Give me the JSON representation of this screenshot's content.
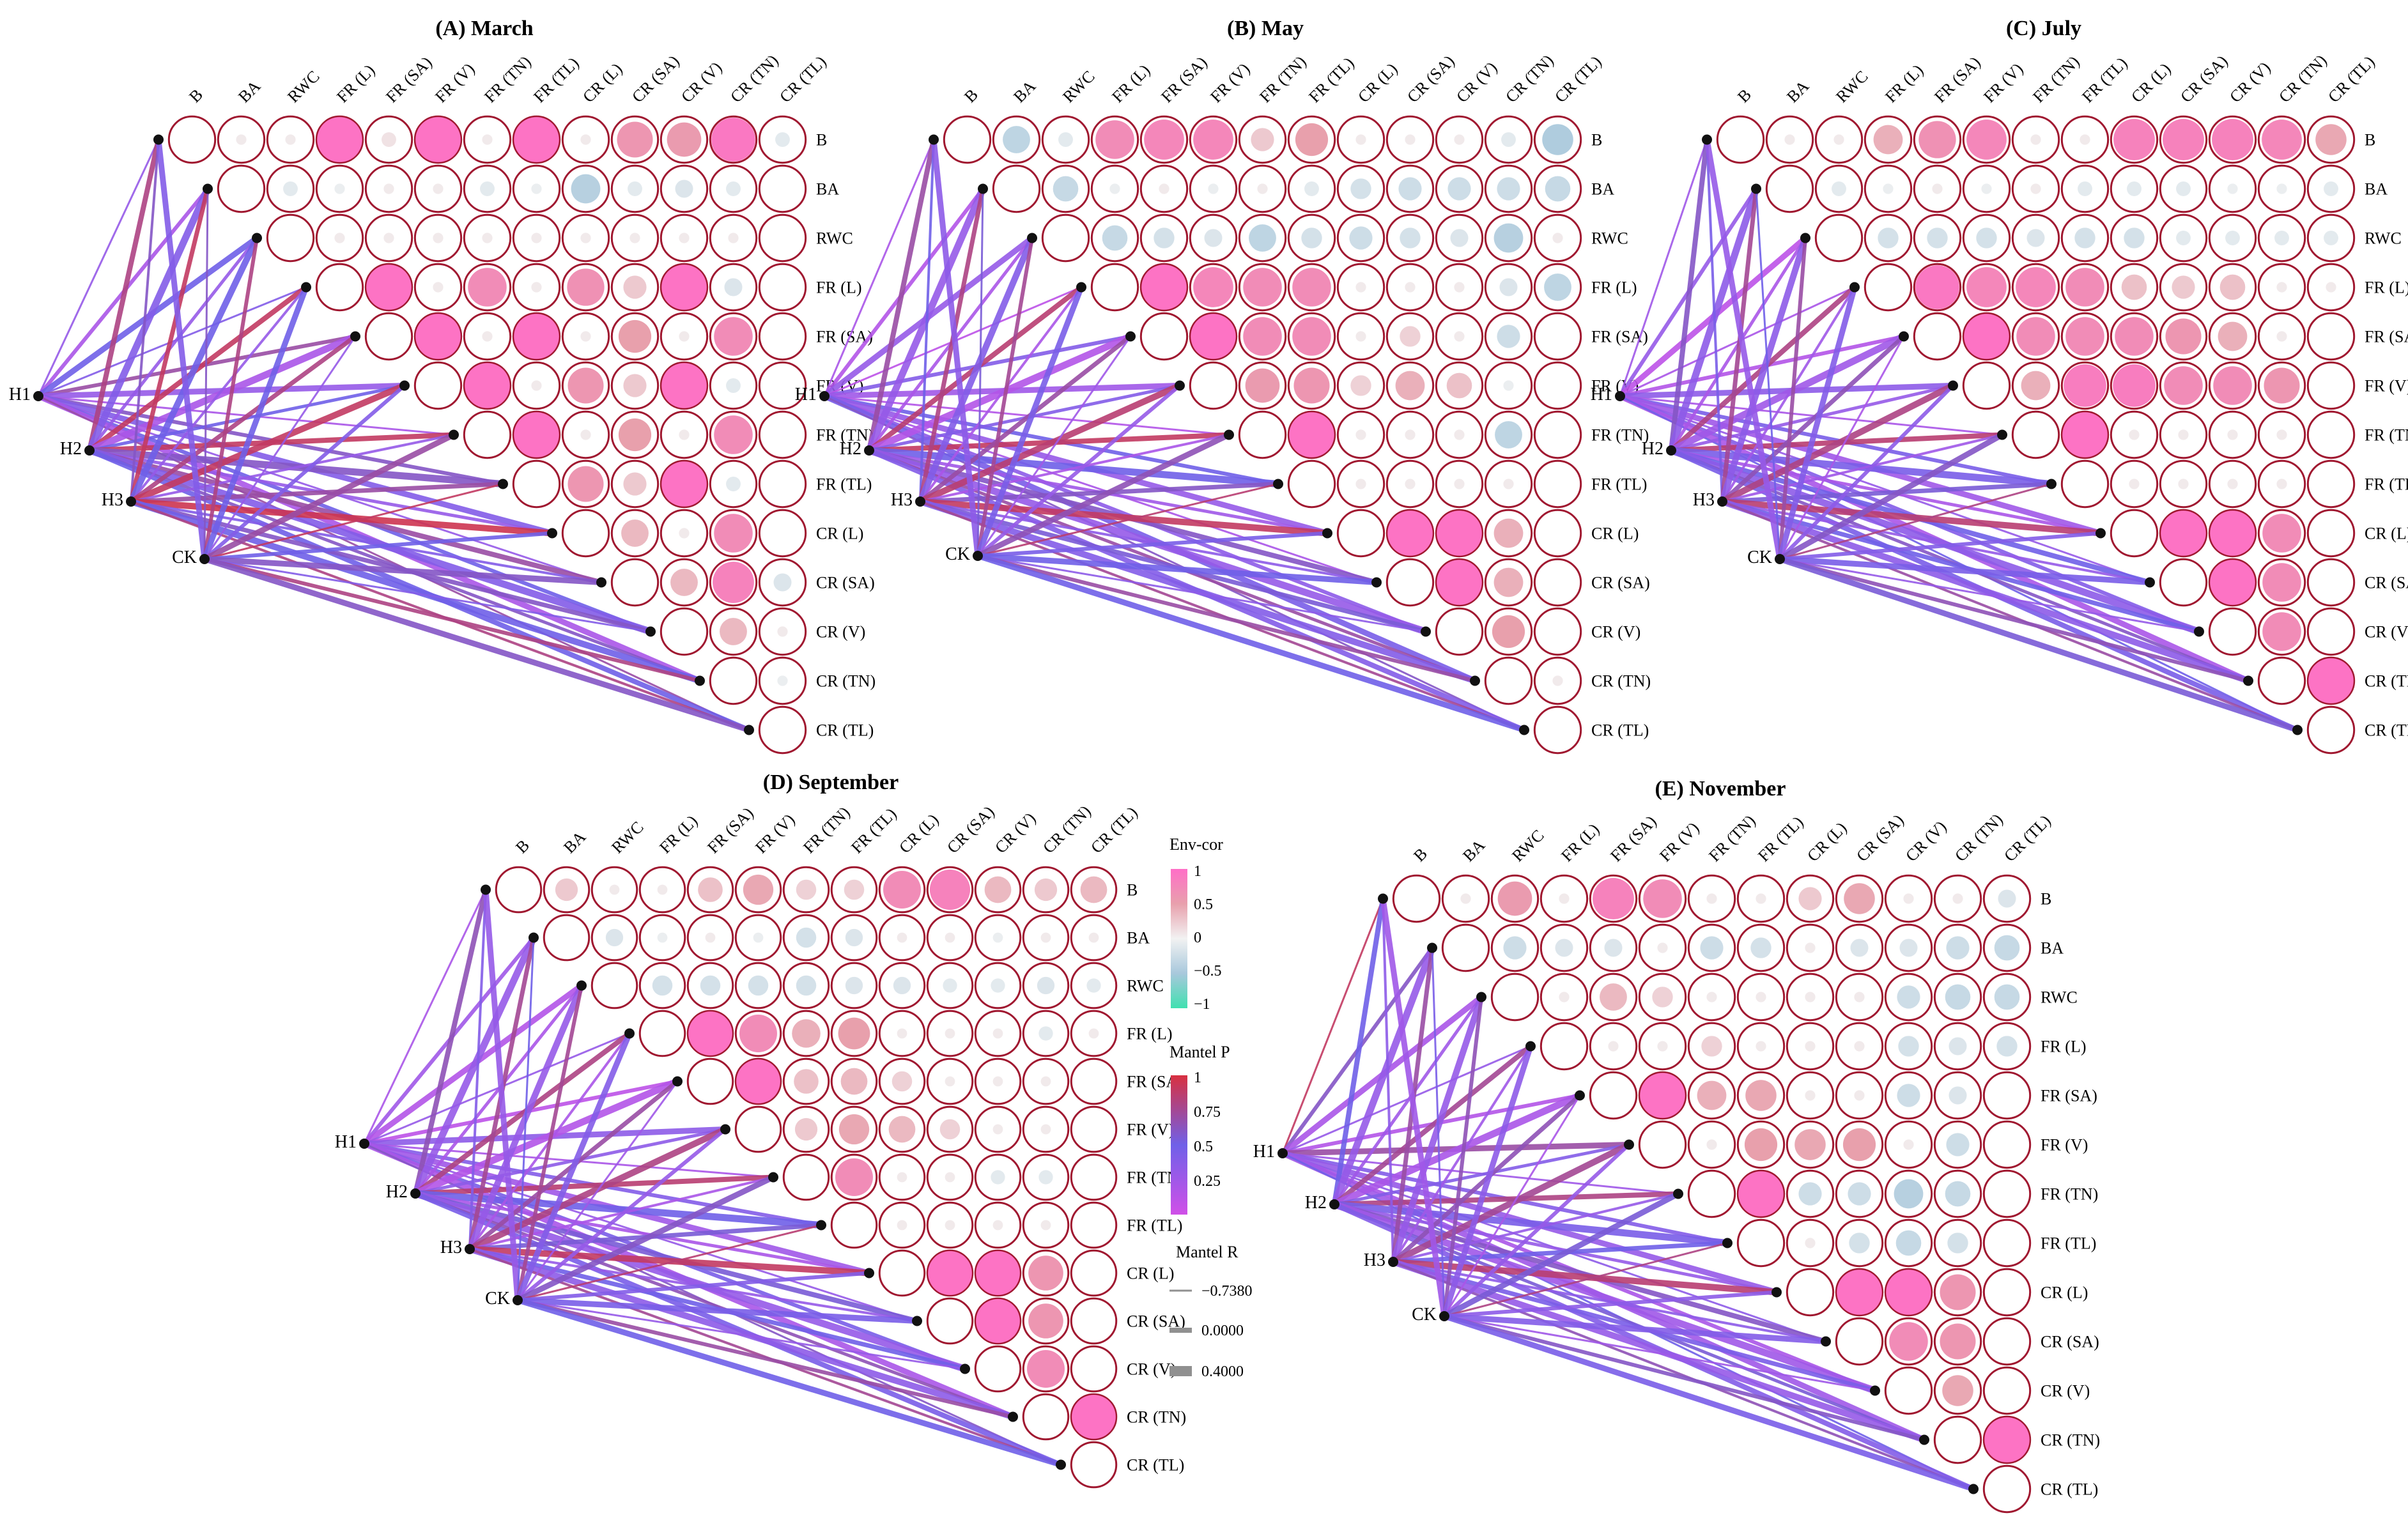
{
  "figure": {
    "variables": [
      "B",
      "BA",
      "RWC",
      "FR (L)",
      "FR (SA)",
      "FR (V)",
      "FR (TN)",
      "FR (TL)",
      "CR (L)",
      "CR (SA)",
      "CR (V)",
      "CR (TN)",
      "CR (TL)"
    ],
    "treatments": [
      "H1",
      "H2",
      "H3",
      "CK"
    ],
    "colors": {
      "corr_neg": "#40e0b0",
      "corr_mid_neg": "#a8c8dc",
      "corr_zero": "#f2f2f2",
      "corr_mid_pos": "#e8a0ac",
      "corr_pos": "#ff6ec7",
      "ring": "#a01830",
      "p_low": "#d050e8",
      "p_mid": "#7060e8",
      "p_high": "#d83040"
    }
  },
  "legend": {
    "envcor": {
      "title": "Env-cor",
      "ticks": [
        "1",
        "0.5",
        "0",
        "−0.5",
        "−1"
      ]
    },
    "mantelp": {
      "title": "Mantel P",
      "ticks": [
        "1",
        "0.75",
        "0.5",
        "0.25"
      ]
    },
    "mantelr": {
      "title": "Mantel R",
      "items": [
        "−0.7380",
        "0.0000",
        "0.4000"
      ]
    }
  },
  "chart_data": [
    {
      "type": "heatmap",
      "title": "(A) March",
      "corr_upper": [
        [
          0.05,
          0.05,
          0.95,
          0.1,
          0.95,
          0.05,
          0.95,
          0.05,
          0.6,
          0.55,
          0.9,
          -0.1
        ],
        [
          -0.1,
          -0.05,
          0.05,
          0.05,
          -0.1,
          -0.05,
          -0.4,
          -0.1,
          -0.15,
          -0.1
        ],
        [
          0.05,
          0.05,
          0.05,
          0.05,
          0.05,
          0.05,
          0.05,
          0.05,
          0.05
        ],
        [
          0.95,
          0.05,
          0.7,
          0.05,
          0.65,
          0.25,
          0.95,
          -0.15
        ],
        [
          0.95,
          0.05,
          0.95,
          0.05,
          0.5,
          0.05,
          0.7
        ],
        [
          0.95,
          0.05,
          0.6,
          0.25,
          0.95,
          -0.1
        ],
        [
          0.95,
          0.05,
          0.5,
          0.05,
          0.7
        ],
        [
          0.6,
          0.25,
          0.95,
          -0.1
        ],
        [
          0.35,
          0.05,
          0.7
        ],
        [
          0.35,
          0.8,
          -0.15
        ],
        [
          0.35,
          0.05
        ],
        [
          -0.05
        ]
      ],
      "mantel": [
        [
          0.3,
          0.2,
          0.5,
          0.4,
          0.7,
          0.3,
          0.2,
          0.6,
          0.4,
          0.3,
          0.5,
          0.2,
          0.7
        ],
        [
          0.8,
          0.4,
          0.3,
          0.9,
          0.2,
          0.5,
          0.9,
          0.6,
          0.3,
          0.7,
          0.4,
          0.6,
          0.5
        ],
        [
          0.6,
          0.9,
          0.5,
          0.3,
          0.8,
          0.9,
          0.3,
          0.7,
          0.95,
          0.4,
          0.6,
          0.5,
          0.8
        ],
        [
          0.4,
          0.6,
          0.8,
          0.5,
          0.3,
          0.4,
          0.7,
          0.9,
          0.5,
          0.6,
          0.4,
          0.8,
          0.6
        ]
      ]
    },
    {
      "type": "heatmap",
      "title": "(B) May",
      "corr_upper": [
        [
          -0.35,
          -0.1,
          0.7,
          0.75,
          0.75,
          0.25,
          0.5,
          0.05,
          0.05,
          0.05,
          -0.1,
          -0.45
        ],
        [
          -0.3,
          -0.05,
          0.05,
          -0.05,
          0.05,
          -0.1,
          -0.2,
          -0.25,
          -0.25,
          -0.25,
          -0.3
        ],
        [
          -0.3,
          -0.2,
          -0.15,
          -0.35,
          -0.2,
          -0.25,
          -0.2,
          -0.15,
          -0.4,
          0.05
        ],
        [
          0.95,
          0.75,
          0.7,
          0.7,
          0.05,
          0.05,
          0.05,
          -0.15,
          -0.35
        ],
        [
          0.95,
          0.7,
          0.7,
          0.05,
          0.2,
          0.05,
          -0.25
        ],
        [
          0.55,
          0.6,
          0.2,
          0.4,
          0.3,
          -0.05
        ],
        [
          0.95,
          0.05,
          0.05,
          0.05,
          -0.35
        ],
        [
          0.05,
          0.05,
          0.05,
          0.05
        ],
        [
          0.95,
          0.95,
          0.4
        ],
        [
          0.95,
          0.4
        ],
        [
          0.5
        ],
        [
          0.05
        ]
      ],
      "mantel": [
        [
          0.2,
          0.15,
          0.3,
          0.1,
          0.4,
          0.25,
          0.15,
          0.5,
          0.3,
          0.2,
          0.35,
          0.45,
          0.6
        ],
        [
          0.7,
          0.3,
          0.2,
          0.85,
          0.15,
          0.4,
          0.9,
          0.5,
          0.25,
          0.6,
          0.3,
          0.7,
          0.4
        ],
        [
          0.5,
          0.8,
          0.4,
          0.2,
          0.7,
          0.85,
          0.2,
          0.6,
          0.9,
          0.35,
          0.55,
          0.4,
          0.75
        ],
        [
          0.35,
          0.55,
          0.75,
          0.45,
          0.25,
          0.3,
          0.65,
          0.85,
          0.45,
          0.5,
          0.35,
          0.7,
          0.5
        ]
      ]
    },
    {
      "type": "heatmap",
      "title": "(C) July",
      "corr_upper": [
        [
          0.05,
          0.05,
          0.4,
          0.65,
          0.75,
          0.05,
          0.05,
          0.8,
          0.8,
          0.8,
          0.75,
          0.45
        ],
        [
          -0.1,
          -0.05,
          0.05,
          -0.05,
          0.05,
          -0.1,
          -0.1,
          -0.1,
          -0.05,
          -0.05,
          -0.1
        ],
        [
          -0.2,
          -0.2,
          -0.2,
          -0.15,
          -0.2,
          -0.2,
          -0.1,
          -0.1,
          -0.1,
          -0.1
        ],
        [
          0.9,
          0.75,
          0.75,
          0.7,
          0.3,
          0.25,
          0.3,
          0.05,
          0.05
        ],
        [
          0.95,
          0.7,
          0.7,
          0.7,
          0.6,
          0.4,
          0.05
        ],
        [
          0.4,
          0.85,
          0.85,
          0.7,
          0.7,
          0.6
        ],
        [
          0.95,
          0.05,
          0.05,
          0.05,
          0.05
        ],
        [
          0.05,
          0.05,
          0.05,
          0.05
        ],
        [
          0.95,
          0.95,
          0.7
        ],
        [
          0.95,
          0.7
        ],
        [
          0.7
        ],
        [
          0.95
        ]
      ],
      "mantel": [
        [
          0.25,
          0.3,
          0.1,
          0.2,
          0.15,
          0.35,
          0.2,
          0.45,
          0.25,
          0.3,
          0.4,
          0.2,
          0.5
        ],
        [
          0.6,
          0.35,
          0.2,
          0.8,
          0.25,
          0.3,
          0.85,
          0.45,
          0.2,
          0.5,
          0.35,
          0.6,
          0.45
        ],
        [
          0.45,
          0.75,
          0.35,
          0.25,
          0.65,
          0.8,
          0.25,
          0.55,
          0.85,
          0.3,
          0.5,
          0.35,
          0.7
        ],
        [
          0.3,
          0.5,
          0.7,
          0.4,
          0.2,
          0.35,
          0.6,
          0.8,
          0.4,
          0.45,
          0.3,
          0.65,
          0.55
        ]
      ]
    },
    {
      "type": "heatmap",
      "title": "(D) September",
      "corr_upper": [
        [
          0.25,
          0.05,
          0.05,
          0.3,
          0.45,
          0.2,
          0.2,
          0.7,
          0.8,
          0.35,
          0.25,
          0.35
        ],
        [
          -0.15,
          -0.05,
          0.05,
          -0.05,
          -0.2,
          -0.15,
          0.05,
          0.05,
          -0.05,
          0.05,
          0.05
        ],
        [
          -0.2,
          -0.2,
          -0.2,
          -0.2,
          -0.15,
          -0.15,
          -0.1,
          -0.1,
          -0.15,
          -0.1
        ],
        [
          0.95,
          0.7,
          0.4,
          0.5,
          0.05,
          0.05,
          0.05,
          -0.1,
          0.05
        ],
        [
          0.95,
          0.3,
          0.35,
          0.2,
          0.05,
          0.05,
          0.05
        ],
        [
          0.25,
          0.45,
          0.35,
          0.2,
          0.05,
          0.05
        ],
        [
          0.7,
          0.05,
          0.05,
          -0.1,
          -0.1
        ],
        [
          0.05,
          0.05,
          0.05,
          0.05
        ],
        [
          0.95,
          0.95,
          0.6
        ],
        [
          0.95,
          0.6
        ],
        [
          0.7
        ],
        [
          0.95
        ]
      ],
      "mantel": [
        [
          0.2,
          0.25,
          0.15,
          0.3,
          0.1,
          0.35,
          0.2,
          0.4,
          0.25,
          0.3,
          0.45,
          0.2,
          0.6
        ],
        [
          0.65,
          0.3,
          0.2,
          0.8,
          0.15,
          0.35,
          0.85,
          0.5,
          0.2,
          0.55,
          0.3,
          0.65,
          0.45
        ],
        [
          0.4,
          0.75,
          0.3,
          0.2,
          0.7,
          0.8,
          0.2,
          0.55,
          0.9,
          0.3,
          0.5,
          0.35,
          0.75
        ],
        [
          0.3,
          0.5,
          0.75,
          0.4,
          0.25,
          0.3,
          0.6,
          0.85,
          0.4,
          0.45,
          0.3,
          0.7,
          0.5
        ]
      ]
    },
    {
      "type": "heatmap",
      "title": "(E) November",
      "corr_upper": [
        [
          0.05,
          0.55,
          0.05,
          0.8,
          0.7,
          0.05,
          0.05,
          0.25,
          0.45,
          0.05,
          0.05,
          -0.15
        ],
        [
          -0.25,
          -0.15,
          -0.15,
          0.05,
          -0.25,
          -0.2,
          0.05,
          -0.15,
          -0.15,
          -0.25,
          -0.3
        ],
        [
          0.05,
          0.35,
          0.2,
          0.05,
          0.05,
          0.05,
          0.05,
          -0.25,
          -0.3,
          -0.3
        ],
        [
          0.05,
          0.05,
          0.2,
          0.05,
          0.05,
          0.05,
          -0.2,
          -0.15,
          -0.2
        ],
        [
          0.95,
          0.4,
          0.45,
          0.05,
          0.05,
          -0.25,
          -0.15
        ],
        [
          0.05,
          0.5,
          0.45,
          0.5,
          0.05,
          -0.25
        ],
        [
          0.95,
          -0.25,
          -0.25,
          -0.4,
          -0.3
        ],
        [
          0.05,
          -0.2,
          -0.3,
          -0.2
        ],
        [
          0.95,
          0.95,
          0.6
        ],
        [
          0.7,
          0.6
        ],
        [
          0.45
        ],
        [
          0.95
        ]
      ],
      "mantel": [
        [
          0.9,
          0.6,
          0.2,
          0.3,
          0.15,
          0.7,
          0.25,
          0.4,
          0.3,
          0.35,
          0.2,
          0.25,
          0.5
        ],
        [
          0.5,
          0.3,
          0.25,
          0.75,
          0.2,
          0.4,
          0.8,
          0.45,
          0.3,
          0.6,
          0.25,
          0.55,
          0.4
        ],
        [
          0.35,
          0.7,
          0.3,
          0.25,
          0.65,
          0.75,
          0.3,
          0.5,
          0.85,
          0.35,
          0.45,
          0.3,
          0.65
        ],
        [
          0.25,
          0.45,
          0.65,
          0.35,
          0.2,
          0.3,
          0.55,
          0.8,
          0.35,
          0.4,
          0.25,
          0.6,
          0.45
        ]
      ]
    }
  ]
}
